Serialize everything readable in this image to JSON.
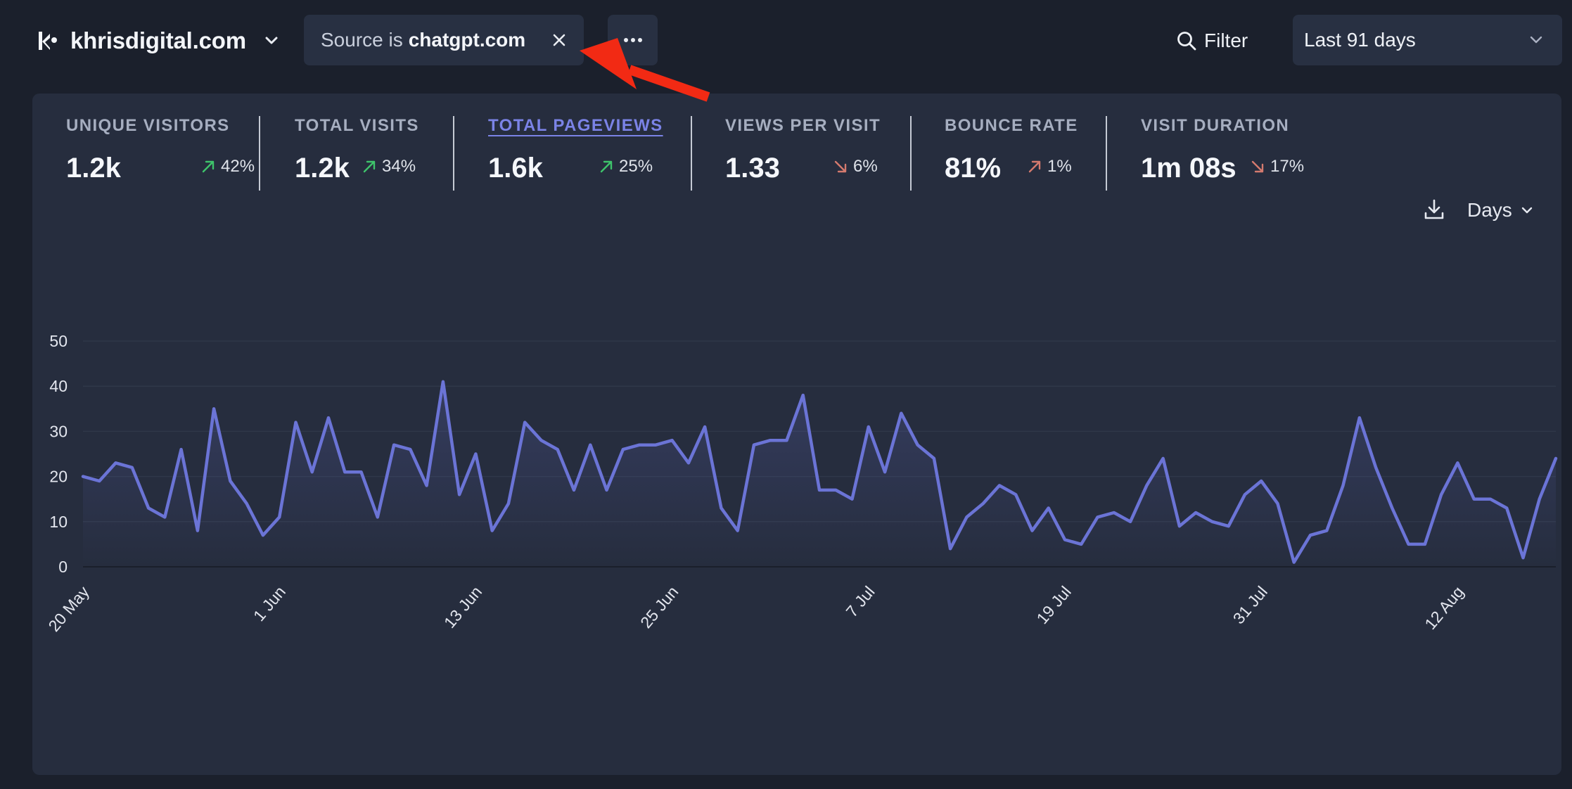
{
  "header": {
    "site_name": "khrisdigital.com",
    "filter_prefix": "Source is",
    "filter_value": "chatgpt.com",
    "filter_button": "Filter",
    "period": "Last 91 days"
  },
  "stats": [
    {
      "label": "Unique visitors",
      "value": "1.2k",
      "change": "42%",
      "direction": "up",
      "trend_color": "#3ec36b"
    },
    {
      "label": "Total visits",
      "value": "1.2k",
      "change": "34%",
      "direction": "up",
      "trend_color": "#3ec36b"
    },
    {
      "label": "Total pageviews",
      "value": "1.6k",
      "change": "25%",
      "direction": "up",
      "trend_color": "#3ec36b"
    },
    {
      "label": "Views per visit",
      "value": "1.33",
      "change": "6%",
      "direction": "down",
      "trend_color": "#d47a6e"
    },
    {
      "label": "Bounce rate",
      "value": "81%",
      "change": "1%",
      "direction": "up",
      "trend_color": "#d47a6e"
    },
    {
      "label": "Visit duration",
      "value": "1m 08s",
      "change": "17%",
      "direction": "down",
      "trend_color": "#d47a6e"
    }
  ],
  "chart_controls": {
    "interval": "Days",
    "icons": [
      "download-icon",
      "chevron-down-icon"
    ]
  },
  "colors": {
    "line": "#6b74d6",
    "active_tab": "#7b83e6",
    "panel": "#262d3e",
    "annotation_arrow": "#f22a14"
  },
  "chart_data": {
    "type": "line",
    "title": "",
    "xlabel": "",
    "ylabel": "",
    "ylim": [
      0,
      50
    ],
    "yticks": [
      0,
      10,
      20,
      30,
      40,
      50
    ],
    "grid": true,
    "start_label": "20 May",
    "xtick_labels": [
      "20 May",
      "1 Jun",
      "13 Jun",
      "25 Jun",
      "7 Jul",
      "19 Jul",
      "31 Jul",
      "12 Aug"
    ],
    "xtick_interval_days": 12,
    "series": [
      {
        "name": "",
        "values": [
          20,
          19,
          23,
          22,
          13,
          11,
          26,
          8,
          35,
          19,
          14,
          7,
          11,
          32,
          21,
          33,
          21,
          21,
          11,
          27,
          26,
          18,
          41,
          16,
          25,
          8,
          14,
          32,
          28,
          26,
          17,
          27,
          17,
          26,
          27,
          27,
          28,
          23,
          31,
          13,
          8,
          27,
          28,
          28,
          38,
          17,
          17,
          15,
          31,
          21,
          34,
          27,
          24,
          4,
          11,
          14,
          18,
          16,
          8,
          13,
          6,
          5,
          11,
          12,
          10,
          18,
          24,
          9,
          12,
          10,
          9,
          16,
          19,
          14,
          1,
          7,
          8,
          18,
          33,
          22,
          13,
          5,
          5,
          16,
          23,
          15,
          15,
          13,
          2,
          15,
          24
        ]
      }
    ]
  }
}
